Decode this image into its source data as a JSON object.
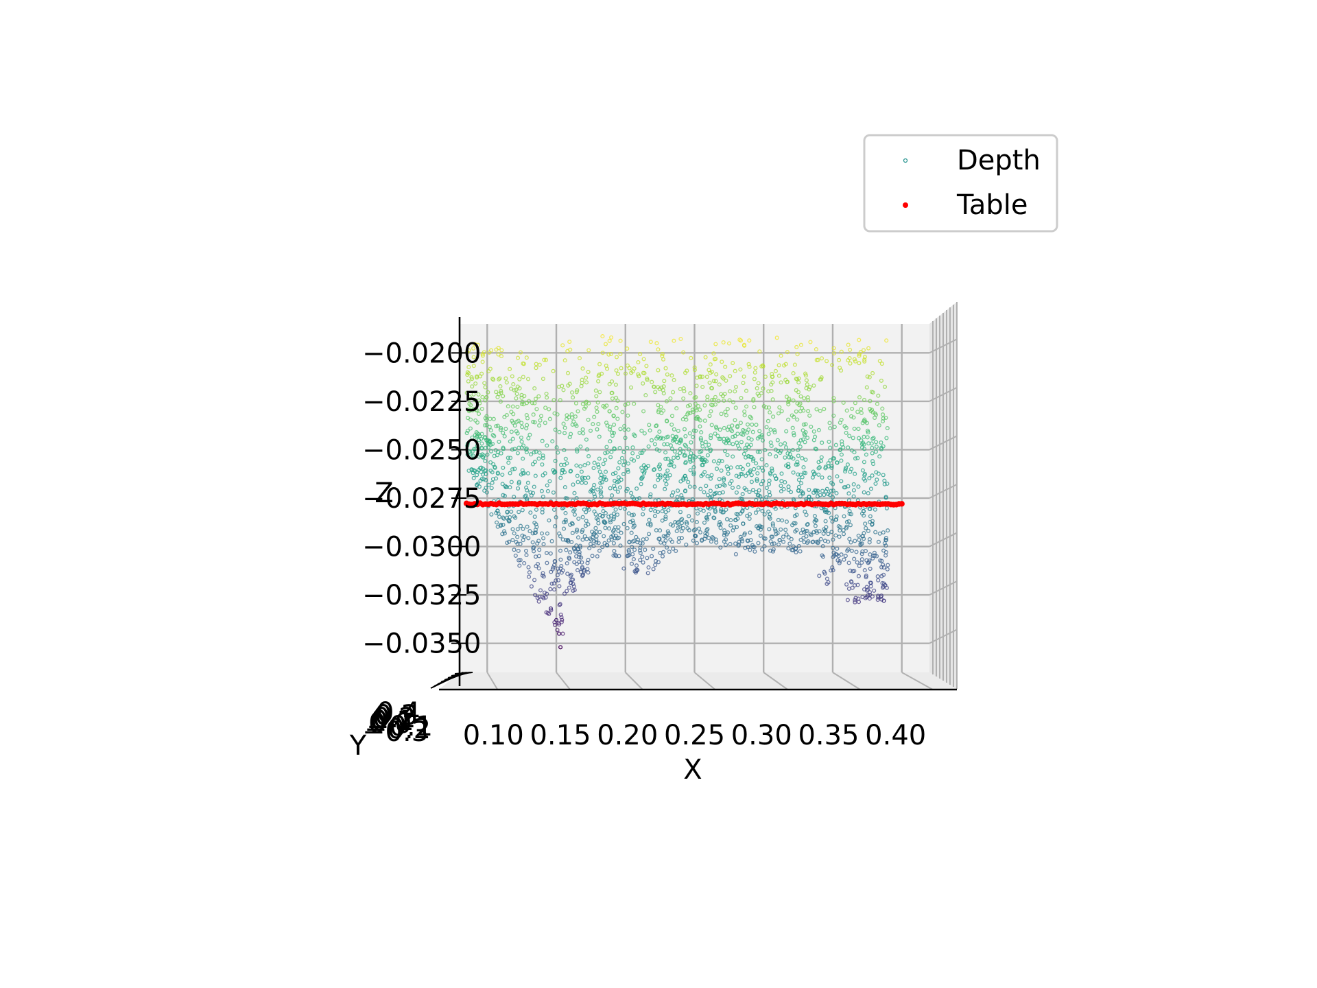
{
  "chart_data": {
    "type": "scatter",
    "projection": "3d",
    "title": "",
    "xlabel": "X",
    "ylabel": "Y",
    "zlabel": "Z",
    "grid": true,
    "legend_position": "top-right",
    "xlim": [
      0.08,
      0.42
    ],
    "zlim": [
      -0.0365,
      -0.0185
    ],
    "x_ticks": [
      "0.10",
      "0.15",
      "0.20",
      "0.25",
      "0.30",
      "0.35",
      "0.40"
    ],
    "z_ticks": [
      "−0.0200",
      "−0.0225",
      "−0.0250",
      "−0.0275",
      "−0.0300",
      "−0.0325",
      "−0.0350"
    ],
    "y_ticks_overlapping": [
      "−0.3",
      "−0.2",
      "−0.1",
      "0.0",
      "0.1",
      "0.2",
      "0.3",
      "0.4"
    ],
    "series": [
      {
        "name": "Depth",
        "colormap": "viridis",
        "marker": "hollow-circle",
        "x_range": [
          0.085,
          0.39
        ],
        "z_range": [
          -0.0355,
          -0.019
        ],
        "description_points": [
          {
            "x": 0.09,
            "z": -0.0205
          },
          {
            "x": 0.095,
            "z": -0.023
          },
          {
            "x": 0.1,
            "z": -0.026
          },
          {
            "x": 0.12,
            "z": -0.029
          },
          {
            "x": 0.135,
            "z": -0.0315
          },
          {
            "x": 0.145,
            "z": -0.033
          },
          {
            "x": 0.15,
            "z": -0.0355
          },
          {
            "x": 0.18,
            "z": -0.03
          },
          {
            "x": 0.22,
            "z": -0.031
          },
          {
            "x": 0.26,
            "z": -0.03
          },
          {
            "x": 0.3,
            "z": -0.0295
          },
          {
            "x": 0.35,
            "z": -0.032
          },
          {
            "x": 0.38,
            "z": -0.033
          },
          {
            "x": 0.39,
            "z": -0.03
          },
          {
            "x": 0.39,
            "z": -0.02
          },
          {
            "x": 0.25,
            "z": -0.0195
          },
          {
            "x": 0.2,
            "z": -0.021
          },
          {
            "x": 0.3,
            "z": -0.023
          }
        ]
      },
      {
        "name": "Table",
        "color": "#ff0000",
        "marker": "filled-circle",
        "z": -0.0278,
        "x_range": [
          0.085,
          0.4
        ]
      }
    ]
  }
}
